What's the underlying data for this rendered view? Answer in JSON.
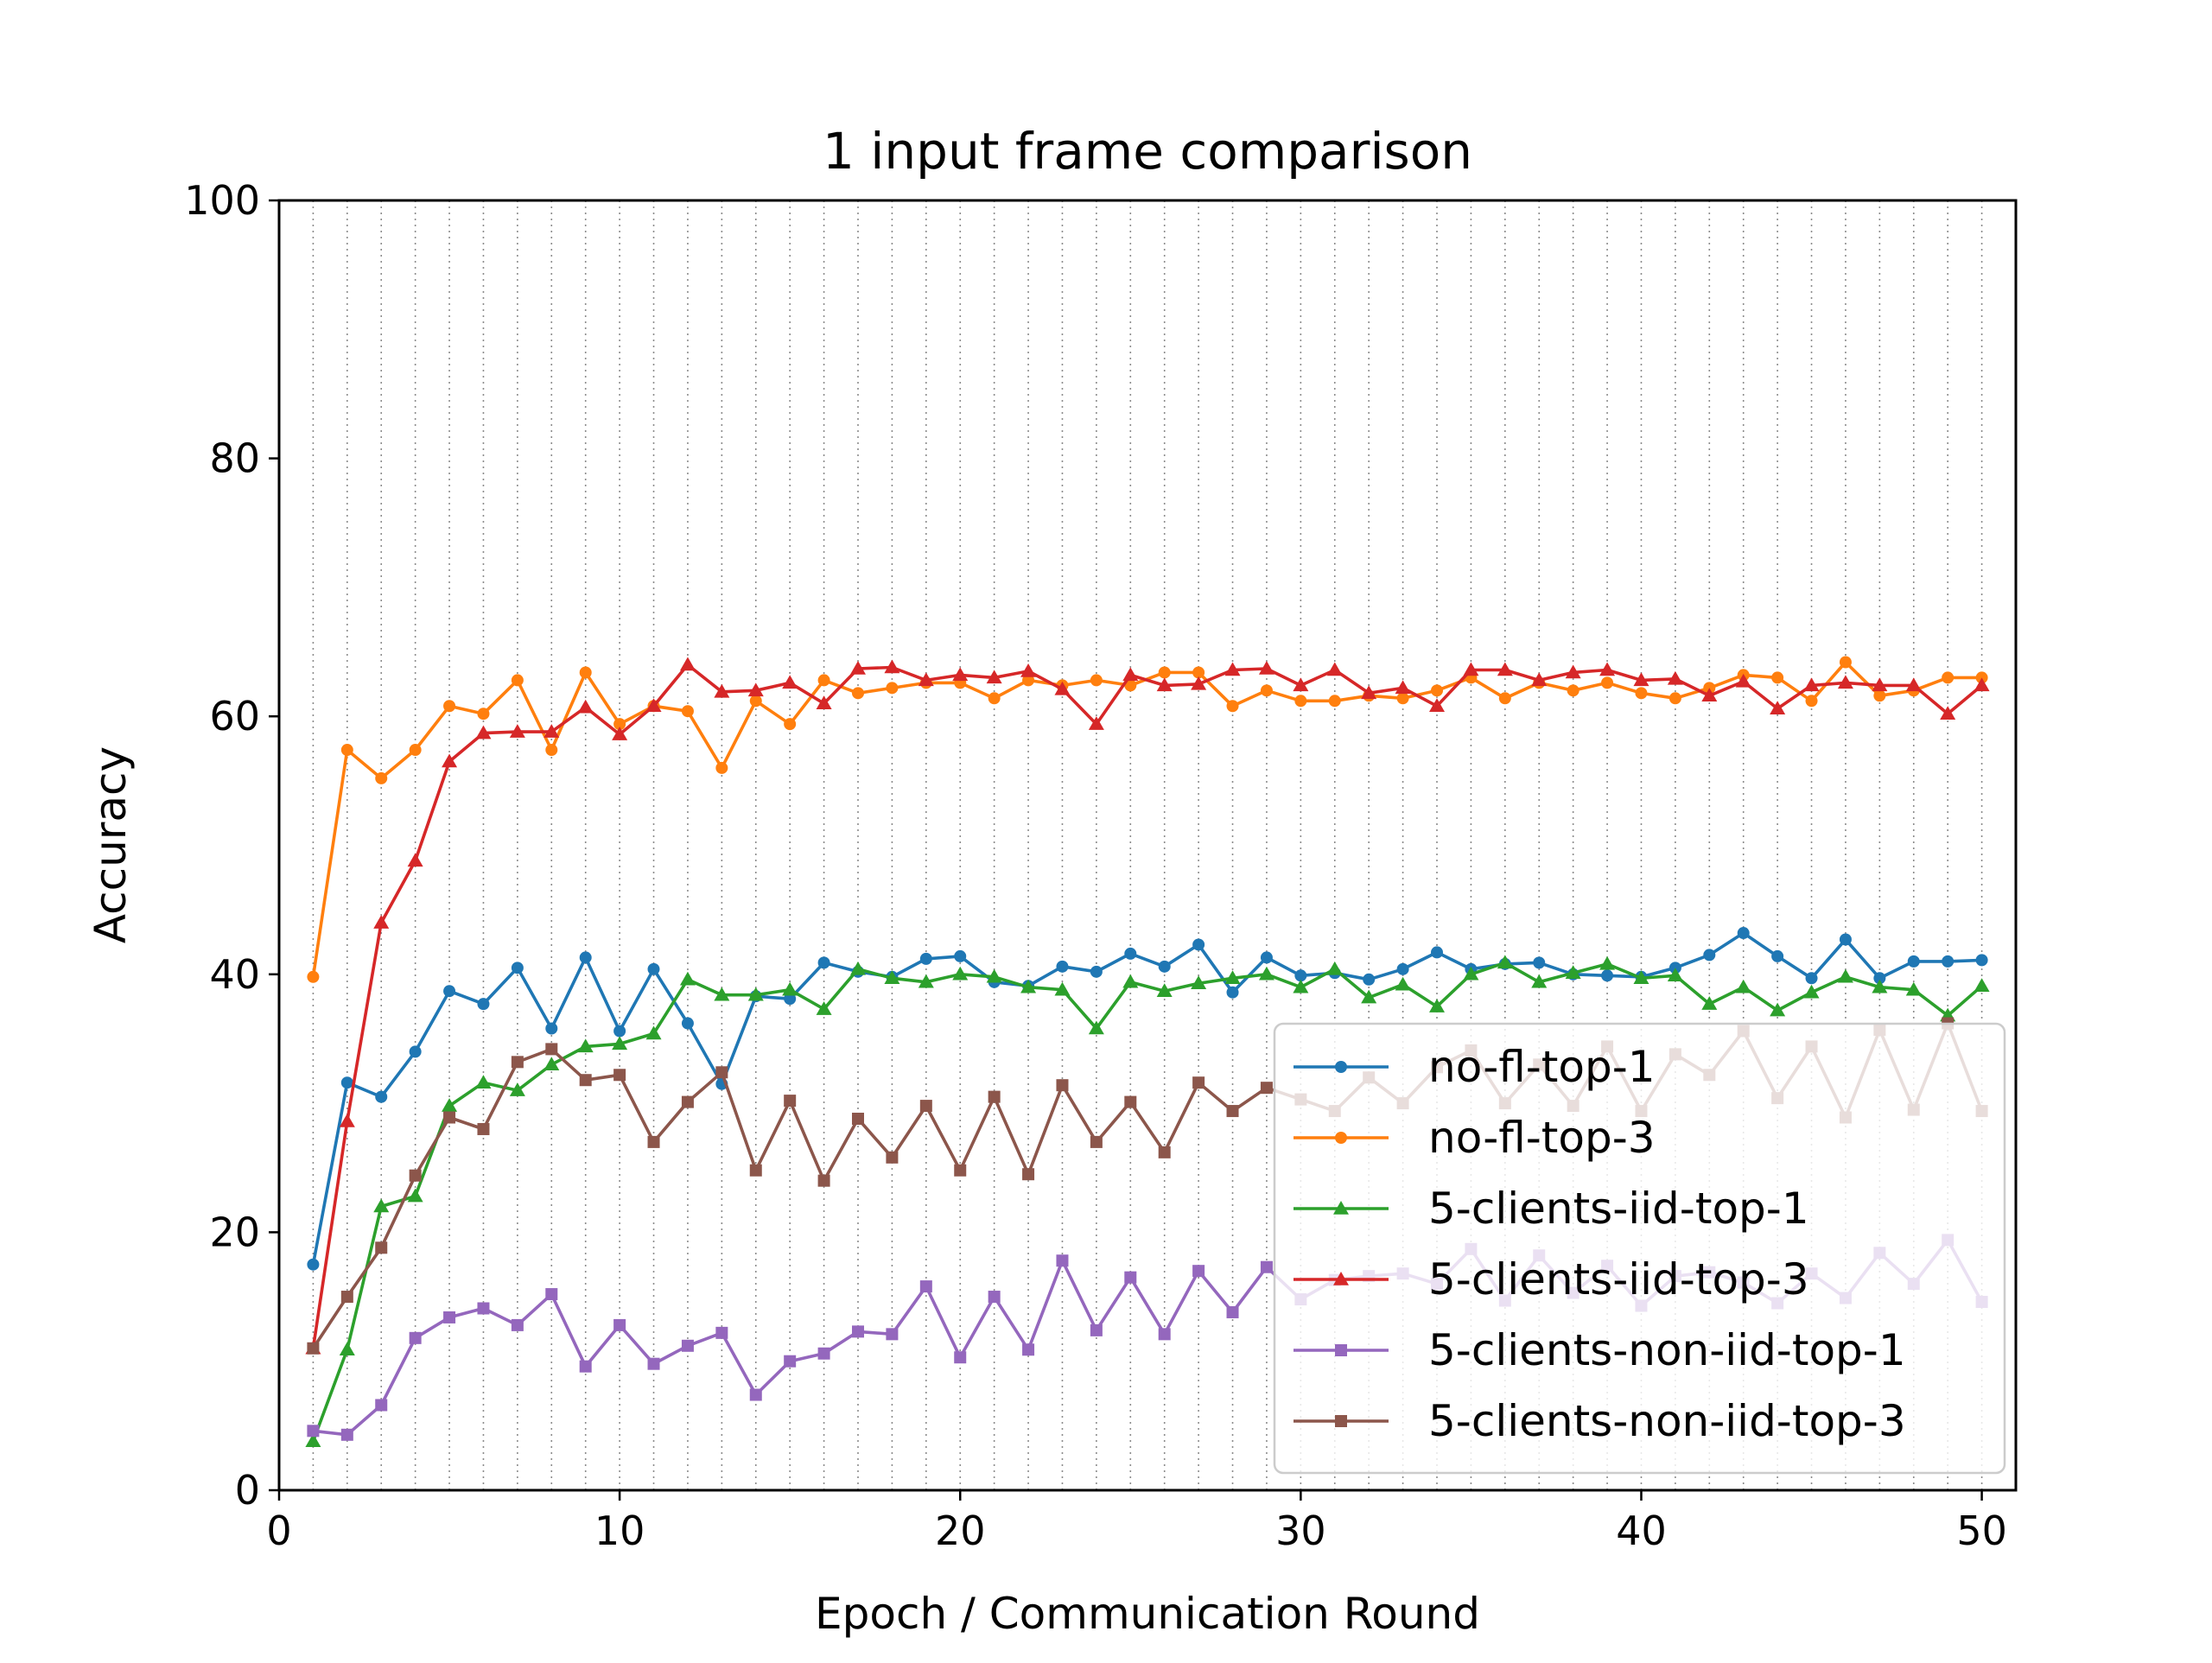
{
  "chart_data": {
    "type": "line",
    "title": "1 input frame comparison",
    "xlabel": "Epoch / Communication Round",
    "ylabel": "Accuracy",
    "xlim": [
      0,
      51
    ],
    "ylim": [
      0,
      100
    ],
    "xticks": [
      0,
      10,
      20,
      30,
      40,
      50
    ],
    "yticks": [
      0,
      20,
      40,
      60,
      80,
      100
    ],
    "grid": "vertical dotted lines at every epoch",
    "legend_position": "lower-right",
    "x": [
      1,
      2,
      3,
      4,
      5,
      6,
      7,
      8,
      9,
      10,
      11,
      12,
      13,
      14,
      15,
      16,
      17,
      18,
      19,
      20,
      21,
      22,
      23,
      24,
      25,
      26,
      27,
      28,
      29,
      30,
      31,
      32,
      33,
      34,
      35,
      36,
      37,
      38,
      39,
      40,
      41,
      42,
      43,
      44,
      45,
      46,
      47,
      48,
      49,
      50
    ],
    "series": [
      {
        "name": "no-fl-top-1",
        "color": "#1f77b4",
        "marker": "circle",
        "values": [
          17.5,
          31.6,
          30.5,
          34.0,
          38.7,
          37.7,
          40.5,
          35.8,
          41.3,
          35.6,
          40.4,
          36.2,
          31.5,
          38.3,
          38.1,
          40.9,
          40.2,
          39.8,
          41.2,
          41.4,
          39.4,
          39.1,
          40.6,
          40.2,
          41.6,
          40.6,
          42.3,
          38.6,
          41.3,
          39.9,
          40.1,
          39.6,
          40.4,
          41.7,
          40.4,
          40.8,
          40.9,
          40.0,
          39.9,
          39.8,
          40.5,
          41.5,
          43.2,
          41.4,
          39.7,
          42.7,
          39.7,
          41.0,
          41.0,
          41.1
        ]
      },
      {
        "name": "no-fl-top-3",
        "color": "#ff7f0e",
        "marker": "circle",
        "values": [
          39.8,
          57.4,
          55.2,
          57.4,
          60.8,
          60.2,
          62.8,
          57.4,
          63.4,
          59.4,
          60.8,
          60.4,
          56.0,
          61.2,
          59.4,
          62.8,
          61.8,
          62.2,
          62.6,
          62.6,
          61.4,
          62.8,
          62.4,
          62.8,
          62.4,
          63.4,
          63.4,
          60.8,
          62.0,
          61.2,
          61.2,
          61.6,
          61.4,
          62.0,
          63.0,
          61.4,
          62.6,
          62.0,
          62.6,
          61.8,
          61.4,
          62.2,
          63.2,
          63.0,
          61.2,
          64.2,
          61.6,
          62.0,
          63.0,
          63.0
        ]
      },
      {
        "name": "5-clients-iid-top-1",
        "color": "#2ca02c",
        "marker": "triangle",
        "values": [
          3.8,
          10.9,
          22.0,
          22.8,
          29.8,
          31.6,
          31.0,
          33.0,
          34.4,
          34.6,
          35.4,
          39.6,
          38.4,
          38.4,
          38.8,
          37.3,
          40.4,
          39.7,
          39.4,
          40.0,
          39.8,
          39.0,
          38.8,
          35.8,
          39.4,
          38.7,
          39.3,
          39.7,
          40.0,
          39.0,
          40.4,
          38.2,
          39.2,
          37.5,
          40.0,
          40.9,
          39.4,
          40.1,
          40.8,
          39.7,
          39.9,
          37.7,
          39.0,
          37.2,
          38.6,
          39.8,
          39.0,
          38.8,
          36.8,
          39.1
        ]
      },
      {
        "name": "5-clients-iid-top-3",
        "color": "#d62728",
        "marker": "triangle",
        "values": [
          11.0,
          28.6,
          44.0,
          48.8,
          56.5,
          58.7,
          58.8,
          58.8,
          60.7,
          58.6,
          60.8,
          64.0,
          61.9,
          62.0,
          62.6,
          61.0,
          63.7,
          63.8,
          62.8,
          63.2,
          63.0,
          63.5,
          62.1,
          59.4,
          63.2,
          62.4,
          62.5,
          63.6,
          63.7,
          62.4,
          63.6,
          61.8,
          62.2,
          60.8,
          63.6,
          63.6,
          62.8,
          63.4,
          63.6,
          62.8,
          62.9,
          61.6,
          62.7,
          60.6,
          62.4,
          62.6,
          62.4,
          62.4,
          60.2,
          62.4
        ]
      },
      {
        "name": "5-clients-non-iid-top-1",
        "color": "#9467bd",
        "marker": "square",
        "values": [
          4.6,
          4.3,
          6.6,
          11.8,
          13.4,
          14.1,
          12.8,
          15.2,
          9.6,
          12.8,
          9.8,
          11.2,
          12.2,
          7.4,
          10.0,
          10.6,
          12.3,
          12.1,
          15.8,
          10.3,
          15.0,
          10.9,
          17.8,
          12.4,
          16.5,
          12.1,
          17.0,
          13.8,
          17.3,
          14.8,
          16.3,
          16.6,
          16.8,
          16.0,
          18.7,
          14.7,
          18.2,
          15.3,
          17.4,
          14.3,
          16.6,
          16.9,
          16.1,
          14.5,
          16.8,
          14.9,
          18.4,
          16.0,
          19.4,
          14.6
        ]
      },
      {
        "name": "5-clients-non-iid-top-3",
        "color": "#8c564b",
        "marker": "square",
        "values": [
          11.0,
          15.0,
          18.8,
          24.4,
          28.9,
          28.0,
          33.2,
          34.2,
          31.8,
          32.2,
          27.0,
          30.1,
          32.4,
          24.8,
          30.2,
          24.0,
          28.8,
          25.8,
          29.8,
          24.8,
          30.5,
          24.5,
          31.4,
          27.0,
          30.1,
          26.2,
          31.6,
          29.4,
          31.2,
          30.3,
          29.4,
          32.0,
          30.0,
          32.8,
          34.1,
          30.0,
          33.0,
          29.8,
          34.4,
          29.4,
          33.8,
          32.2,
          35.6,
          30.4,
          34.4,
          28.9,
          35.7,
          29.5,
          36.2,
          29.4
        ]
      }
    ]
  }
}
